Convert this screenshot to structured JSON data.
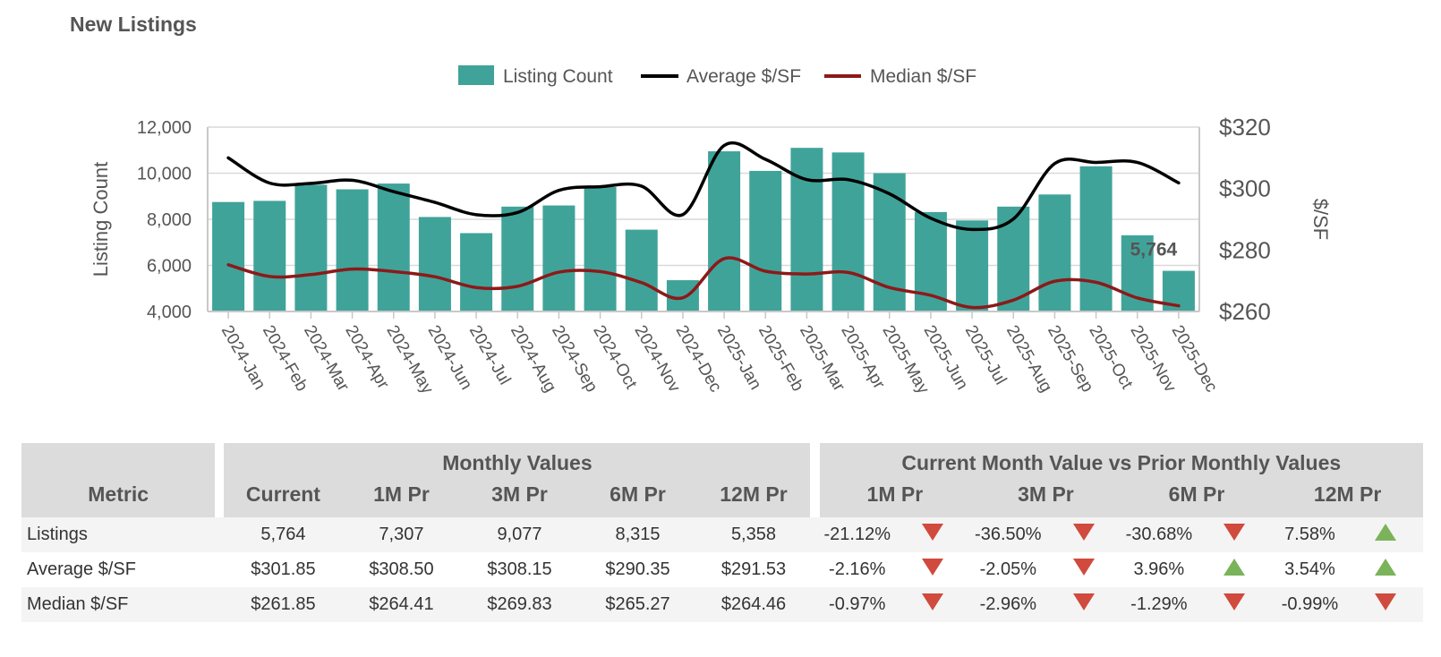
{
  "page_title": "New Listings",
  "colors": {
    "bar": "#40a399",
    "average": "#000000",
    "median": "#8b1a1a",
    "down": "#d04a3e",
    "up": "#7ab35a",
    "header_bg": "#dcdcdc"
  },
  "chart_data": {
    "type": "bar",
    "legend": {
      "placement": "top-center",
      "entries": [
        "Listing Count",
        "Average $/SF",
        "Median $/SF"
      ]
    },
    "categories": [
      "2024-Jan",
      "2024-Feb",
      "2024-Mar",
      "2024-Apr",
      "2024-May",
      "2024-Jun",
      "2024-Jul",
      "2024-Aug",
      "2024-Sep",
      "2024-Oct",
      "2024-Nov",
      "2024-Dec",
      "2025-Jan",
      "2025-Feb",
      "2025-Mar",
      "2025-Apr",
      "2025-May",
      "2025-Jun",
      "2025-Jul",
      "2025-Aug",
      "2025-Sep",
      "2025-Oct",
      "2025-Nov",
      "2025-Dec"
    ],
    "series": [
      {
        "name": "Listing Count",
        "axis": "left",
        "kind": "bar",
        "values": [
          8750,
          8800,
          9500,
          9300,
          9550,
          8100,
          7400,
          8550,
          8600,
          9400,
          7550,
          5358,
          10950,
          10100,
          11100,
          10900,
          10000,
          8315,
          7950,
          8550,
          9077,
          10300,
          7307,
          5764
        ]
      },
      {
        "name": "Average $/SF",
        "axis": "right",
        "kind": "line",
        "values": [
          310.0,
          301.8,
          301.7,
          302.7,
          299.0,
          295.5,
          291.5,
          292.2,
          299.4,
          300.6,
          300.8,
          291.53,
          314.0,
          309.5,
          302.9,
          302.9,
          298.3,
          290.35,
          286.7,
          290.1,
          308.15,
          308.5,
          308.5,
          301.85
        ]
      },
      {
        "name": "Median $/SF",
        "axis": "right",
        "kind": "line",
        "values": [
          275.2,
          271.4,
          272.0,
          273.8,
          273.0,
          271.3,
          267.8,
          268.2,
          272.8,
          273.0,
          269.4,
          264.46,
          277.2,
          273.1,
          272.2,
          272.7,
          267.8,
          265.27,
          261.3,
          263.7,
          269.83,
          269.5,
          264.41,
          261.85
        ]
      }
    ],
    "ylabel": "Listing Count",
    "ylabel_right": "$/SF",
    "ylim": [
      4000,
      12000
    ],
    "yticks": [
      "4,000",
      "6,000",
      "8,000",
      "10,000",
      "12,000"
    ],
    "ylim_right": [
      260,
      320
    ],
    "yticks_right": [
      "$260",
      "$280",
      "$300",
      "$320"
    ],
    "grid": true,
    "annotation": {
      "category": "2025-Dec",
      "text": "5,764"
    }
  },
  "table": {
    "metric_header": "Metric",
    "monthly_group": "Monthly Values",
    "compare_group": "Current Month Value vs Prior Monthly Values",
    "monthly_cols": [
      "Current",
      "1M Pr",
      "3M Pr",
      "6M Pr",
      "12M Pr"
    ],
    "compare_cols": [
      "1M Pr",
      "3M Pr",
      "6M Pr",
      "12M Pr"
    ],
    "rows": [
      {
        "metric": "Listings",
        "values": [
          "5,764",
          "7,307",
          "9,077",
          "8,315",
          "5,358"
        ],
        "changes": [
          {
            "pct": "-21.12%",
            "dir": "down"
          },
          {
            "pct": "-36.50%",
            "dir": "down"
          },
          {
            "pct": "-30.68%",
            "dir": "down"
          },
          {
            "pct": "7.58%",
            "dir": "up"
          }
        ]
      },
      {
        "metric": "Average $/SF",
        "values": [
          "$301.85",
          "$308.50",
          "$308.15",
          "$290.35",
          "$291.53"
        ],
        "changes": [
          {
            "pct": "-2.16%",
            "dir": "down"
          },
          {
            "pct": "-2.05%",
            "dir": "down"
          },
          {
            "pct": "3.96%",
            "dir": "up"
          },
          {
            "pct": "3.54%",
            "dir": "up"
          }
        ]
      },
      {
        "metric": "Median $/SF",
        "values": [
          "$261.85",
          "$264.41",
          "$269.83",
          "$265.27",
          "$264.46"
        ],
        "changes": [
          {
            "pct": "-0.97%",
            "dir": "down"
          },
          {
            "pct": "-2.96%",
            "dir": "down"
          },
          {
            "pct": "-1.29%",
            "dir": "down"
          },
          {
            "pct": "-0.99%",
            "dir": "down"
          }
        ]
      }
    ]
  }
}
